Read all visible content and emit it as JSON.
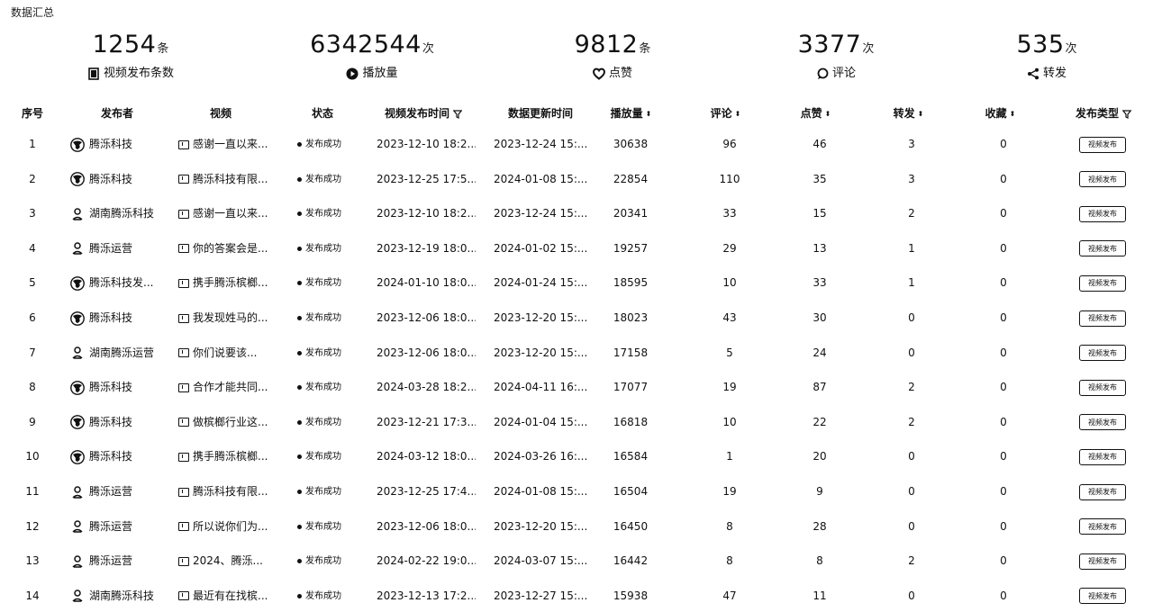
{
  "section_title": "数据汇总",
  "stats": [
    {
      "value": "1254",
      "unit": "条",
      "label": "视频发布条数",
      "icon": "video-list-icon"
    },
    {
      "value": "6342544",
      "unit": "次",
      "label": "播放量",
      "icon": "play-icon"
    },
    {
      "value": "9812",
      "unit": "条",
      "label": "点赞",
      "icon": "heart-icon"
    },
    {
      "value": "3377",
      "unit": "次",
      "label": "评论",
      "icon": "comment-icon"
    },
    {
      "value": "535",
      "unit": "次",
      "label": "转发",
      "icon": "share-icon"
    }
  ],
  "columns": {
    "index": "序号",
    "publisher": "发布者",
    "video": "视频",
    "status": "状态",
    "publish_time": "视频发布时间",
    "update_time": "数据更新时间",
    "plays": "播放量",
    "comments": "评论",
    "likes": "点赞",
    "shares": "转发",
    "favorites": "收藏",
    "publish_type": "发布类型"
  },
  "rows": [
    {
      "index": "1",
      "publisher": "腾泺科技",
      "avatar": "logo",
      "video": "感谢一直以来...",
      "status": "发布成功",
      "publish_time": "2023-12-10 18:2...",
      "update_time": "2023-12-24 15:...",
      "plays": "30638",
      "comments": "96",
      "likes": "46",
      "shares": "3",
      "favorites": "0",
      "type_label": "视频发布"
    },
    {
      "index": "2",
      "publisher": "腾泺科技",
      "avatar": "logo",
      "video": "腾泺科技有限...",
      "status": "发布成功",
      "publish_time": "2023-12-25 17:5...",
      "update_time": "2024-01-08 15:...",
      "plays": "22854",
      "comments": "110",
      "likes": "35",
      "shares": "3",
      "favorites": "0",
      "type_label": "视频发布"
    },
    {
      "index": "3",
      "publisher": "湖南腾泺科技",
      "avatar": "person",
      "video": "感谢一直以来...",
      "status": "发布成功",
      "publish_time": "2023-12-10 18:2...",
      "update_time": "2023-12-24 15:...",
      "plays": "20341",
      "comments": "33",
      "likes": "15",
      "shares": "2",
      "favorites": "0",
      "type_label": "视频发布"
    },
    {
      "index": "4",
      "publisher": "腾泺运营",
      "avatar": "person",
      "video": "你的答案会是...",
      "status": "发布成功",
      "publish_time": "2023-12-19 18:0...",
      "update_time": "2024-01-02 15:...",
      "plays": "19257",
      "comments": "29",
      "likes": "13",
      "shares": "1",
      "favorites": "0",
      "type_label": "视频发布"
    },
    {
      "index": "5",
      "publisher": "腾泺科技发...",
      "avatar": "logo",
      "video": "携手腾泺槟榔...",
      "status": "发布成功",
      "publish_time": "2024-01-10 18:0...",
      "update_time": "2024-01-24 15:...",
      "plays": "18595",
      "comments": "10",
      "likes": "33",
      "shares": "1",
      "favorites": "0",
      "type_label": "视频发布"
    },
    {
      "index": "6",
      "publisher": "腾泺科技",
      "avatar": "logo",
      "video": "我发现姓马的...",
      "status": "发布成功",
      "publish_time": "2023-12-06 18:0...",
      "update_time": "2023-12-20 15:...",
      "plays": "18023",
      "comments": "43",
      "likes": "30",
      "shares": "0",
      "favorites": "0",
      "type_label": "视频发布"
    },
    {
      "index": "7",
      "publisher": "湖南腾泺运营",
      "avatar": "person",
      "video": "你们说要该...",
      "status": "发布成功",
      "publish_time": "2023-12-06 18:0...",
      "update_time": "2023-12-20 15:...",
      "plays": "17158",
      "comments": "5",
      "likes": "24",
      "shares": "0",
      "favorites": "0",
      "type_label": "视频发布"
    },
    {
      "index": "8",
      "publisher": "腾泺科技",
      "avatar": "logo",
      "video": "合作才能共同...",
      "status": "发布成功",
      "publish_time": "2024-03-28 18:2...",
      "update_time": "2024-04-11 16:...",
      "plays": "17077",
      "comments": "19",
      "likes": "87",
      "shares": "2",
      "favorites": "0",
      "type_label": "视频发布"
    },
    {
      "index": "9",
      "publisher": "腾泺科技",
      "avatar": "logo",
      "video": "做槟榔行业这...",
      "status": "发布成功",
      "publish_time": "2023-12-21 17:3...",
      "update_time": "2024-01-04 15:...",
      "plays": "16818",
      "comments": "10",
      "likes": "22",
      "shares": "2",
      "favorites": "0",
      "type_label": "视频发布"
    },
    {
      "index": "10",
      "publisher": "腾泺科技",
      "avatar": "logo",
      "video": "携手腾泺槟榔...",
      "status": "发布成功",
      "publish_time": "2024-03-12 18:0...",
      "update_time": "2024-03-26 16:...",
      "plays": "16584",
      "comments": "1",
      "likes": "20",
      "shares": "0",
      "favorites": "0",
      "type_label": "视频发布"
    },
    {
      "index": "11",
      "publisher": "腾泺运营",
      "avatar": "person",
      "video": "腾泺科技有限...",
      "status": "发布成功",
      "publish_time": "2023-12-25 17:4...",
      "update_time": "2024-01-08 15:...",
      "plays": "16504",
      "comments": "19",
      "likes": "9",
      "shares": "0",
      "favorites": "0",
      "type_label": "视频发布"
    },
    {
      "index": "12",
      "publisher": "腾泺运营",
      "avatar": "person",
      "video": "所以说你们为...",
      "status": "发布成功",
      "publish_time": "2023-12-06 18:0...",
      "update_time": "2023-12-20 15:...",
      "plays": "16450",
      "comments": "8",
      "likes": "28",
      "shares": "0",
      "favorites": "0",
      "type_label": "视频发布"
    },
    {
      "index": "13",
      "publisher": "腾泺运营",
      "avatar": "person",
      "video": "2024、腾泺...",
      "status": "发布成功",
      "publish_time": "2024-02-22 19:0...",
      "update_time": "2024-03-07 15:...",
      "plays": "16442",
      "comments": "8",
      "likes": "8",
      "shares": "2",
      "favorites": "0",
      "type_label": "视频发布"
    },
    {
      "index": "14",
      "publisher": "湖南腾泺科技",
      "avatar": "person",
      "video": "最近有在找槟...",
      "status": "发布成功",
      "publish_time": "2023-12-13 17:2...",
      "update_time": "2023-12-27 15:...",
      "plays": "15938",
      "comments": "47",
      "likes": "11",
      "shares": "0",
      "favorites": "0",
      "type_label": "视频发布"
    }
  ]
}
